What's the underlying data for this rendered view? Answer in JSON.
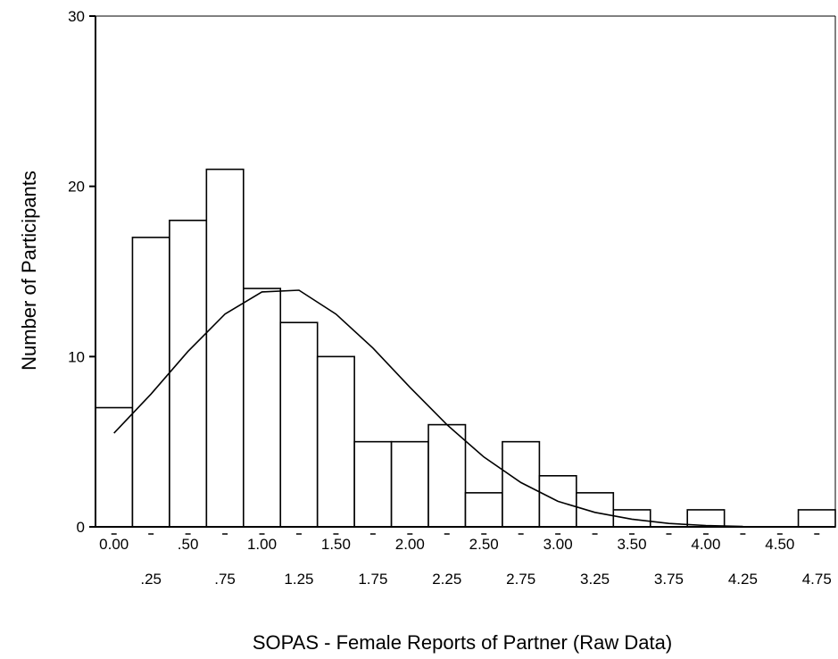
{
  "chart_data": {
    "type": "bar",
    "subtype": "histogram-with-normal-curve",
    "xlabel": "SOPAS - Female Reports of Partner (Raw Data)",
    "ylabel": "Number of Participants",
    "ylim": [
      0,
      30
    ],
    "yticks": [
      "0",
      "10",
      "20",
      "30"
    ],
    "categories": [
      "0.00",
      ".25",
      ".50",
      ".75",
      "1.00",
      "1.25",
      "1.50",
      "1.75",
      "2.00",
      "2.25",
      "2.50",
      "2.75",
      "3.00",
      "3.25",
      "3.50",
      "3.75",
      "4.00",
      "4.25",
      "4.50",
      "4.75"
    ],
    "values": [
      7,
      17,
      18,
      21,
      14,
      12,
      10,
      5,
      5,
      6,
      2,
      5,
      3,
      2,
      1,
      0,
      1,
      0,
      0,
      1
    ],
    "normal_curve": {
      "x": [
        0.0,
        0.25,
        0.5,
        0.75,
        1.0,
        1.25,
        1.5,
        1.75,
        2.0,
        2.25,
        2.5,
        2.75,
        3.0,
        3.25,
        3.5,
        3.75,
        4.0,
        4.25
      ],
      "y": [
        5.5,
        7.8,
        10.3,
        12.5,
        13.8,
        13.9,
        12.5,
        10.5,
        8.2,
        6.0,
        4.1,
        2.6,
        1.5,
        0.85,
        0.45,
        0.2,
        0.08,
        0.02
      ]
    },
    "grid": false,
    "legend": "none"
  }
}
